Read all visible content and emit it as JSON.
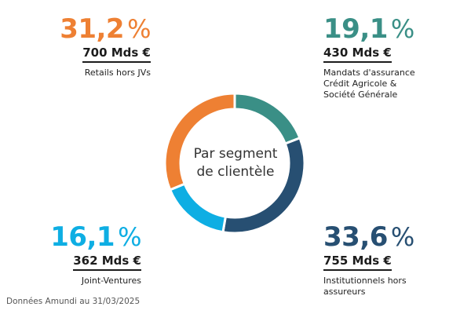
{
  "chart_data": {
    "type": "pie",
    "variant": "donut",
    "center_label": [
      "Par segment",
      "de clientèle"
    ],
    "segments": [
      {
        "percent_label": "19,1",
        "value": 19.1,
        "amount": "430 Mds €",
        "description": [
          "Mandats d'assurance",
          "Crédit Agricole &",
          "Société Générale"
        ],
        "color": "#3a8f86"
      },
      {
        "percent_label": "33,6",
        "value": 33.6,
        "amount": "755 Mds €",
        "description": [
          "Institutionnels hors",
          "assureurs"
        ],
        "color": "#274f72"
      },
      {
        "percent_label": "16,1",
        "value": 16.1,
        "amount": "362 Mds €",
        "description": [
          "Joint-Ventures"
        ],
        "color": "#0eaee3"
      },
      {
        "percent_label": "31,2",
        "value": 31.2,
        "amount": "700 Mds €",
        "description": [
          "Retails hors JVs"
        ],
        "color": "#ee8033"
      }
    ],
    "percent_unit": "%",
    "legend": "labels around donut"
  },
  "footer": {
    "source": "Données Amundi au 31/03/2025"
  }
}
